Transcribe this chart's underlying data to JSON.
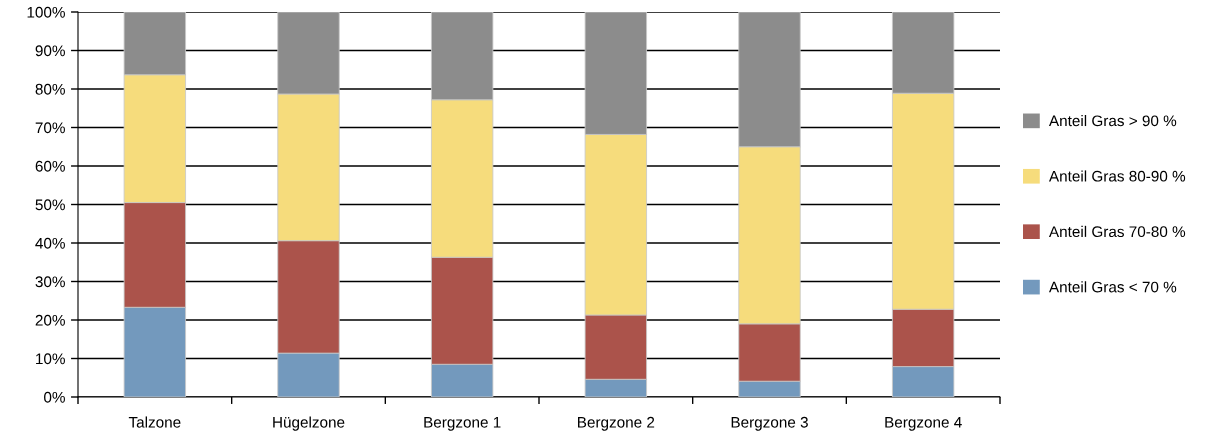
{
  "chart_data": {
    "type": "bar",
    "stacked": true,
    "categories": [
      "Talzone",
      "Hügelzone",
      "Bergzone 1",
      "Bergzone 2",
      "Bergzone 3",
      "Bergzone 4"
    ],
    "series": [
      {
        "name": "Anteil Gras < 70 %",
        "color": "#7399bd",
        "values": [
          23.3,
          11.4,
          8.5,
          4.6,
          4.1,
          7.9
        ]
      },
      {
        "name": "Anteil Gras 70-80 %",
        "color": "#ab534b",
        "values": [
          27.2,
          29.2,
          27.8,
          16.7,
          14.9,
          14.9
        ]
      },
      {
        "name": "Anteil Gras 80-90 %",
        "color": "#f6dc7c",
        "values": [
          33.2,
          38.1,
          40.9,
          46.9,
          46.0,
          56.1
        ]
      },
      {
        "name": "Anteil Gras > 90 %",
        "color": "#8c8c8c",
        "values": [
          16.3,
          21.3,
          22.8,
          31.8,
          35.0,
          21.1
        ]
      }
    ],
    "ylim": [
      0,
      100
    ],
    "yticks": [
      {
        "value": 0,
        "label": "0%"
      },
      {
        "value": 10,
        "label": "10%"
      },
      {
        "value": 20,
        "label": "20%"
      },
      {
        "value": 30,
        "label": "30%"
      },
      {
        "value": 40,
        "label": "40%"
      },
      {
        "value": 50,
        "label": "50%"
      },
      {
        "value": 60,
        "label": "60%"
      },
      {
        "value": 70,
        "label": "70%"
      },
      {
        "value": 80,
        "label": "80%"
      },
      {
        "value": 90,
        "label": "90%"
      },
      {
        "value": 100,
        "label": "100%"
      }
    ],
    "grid": "y",
    "legend": "right"
  }
}
